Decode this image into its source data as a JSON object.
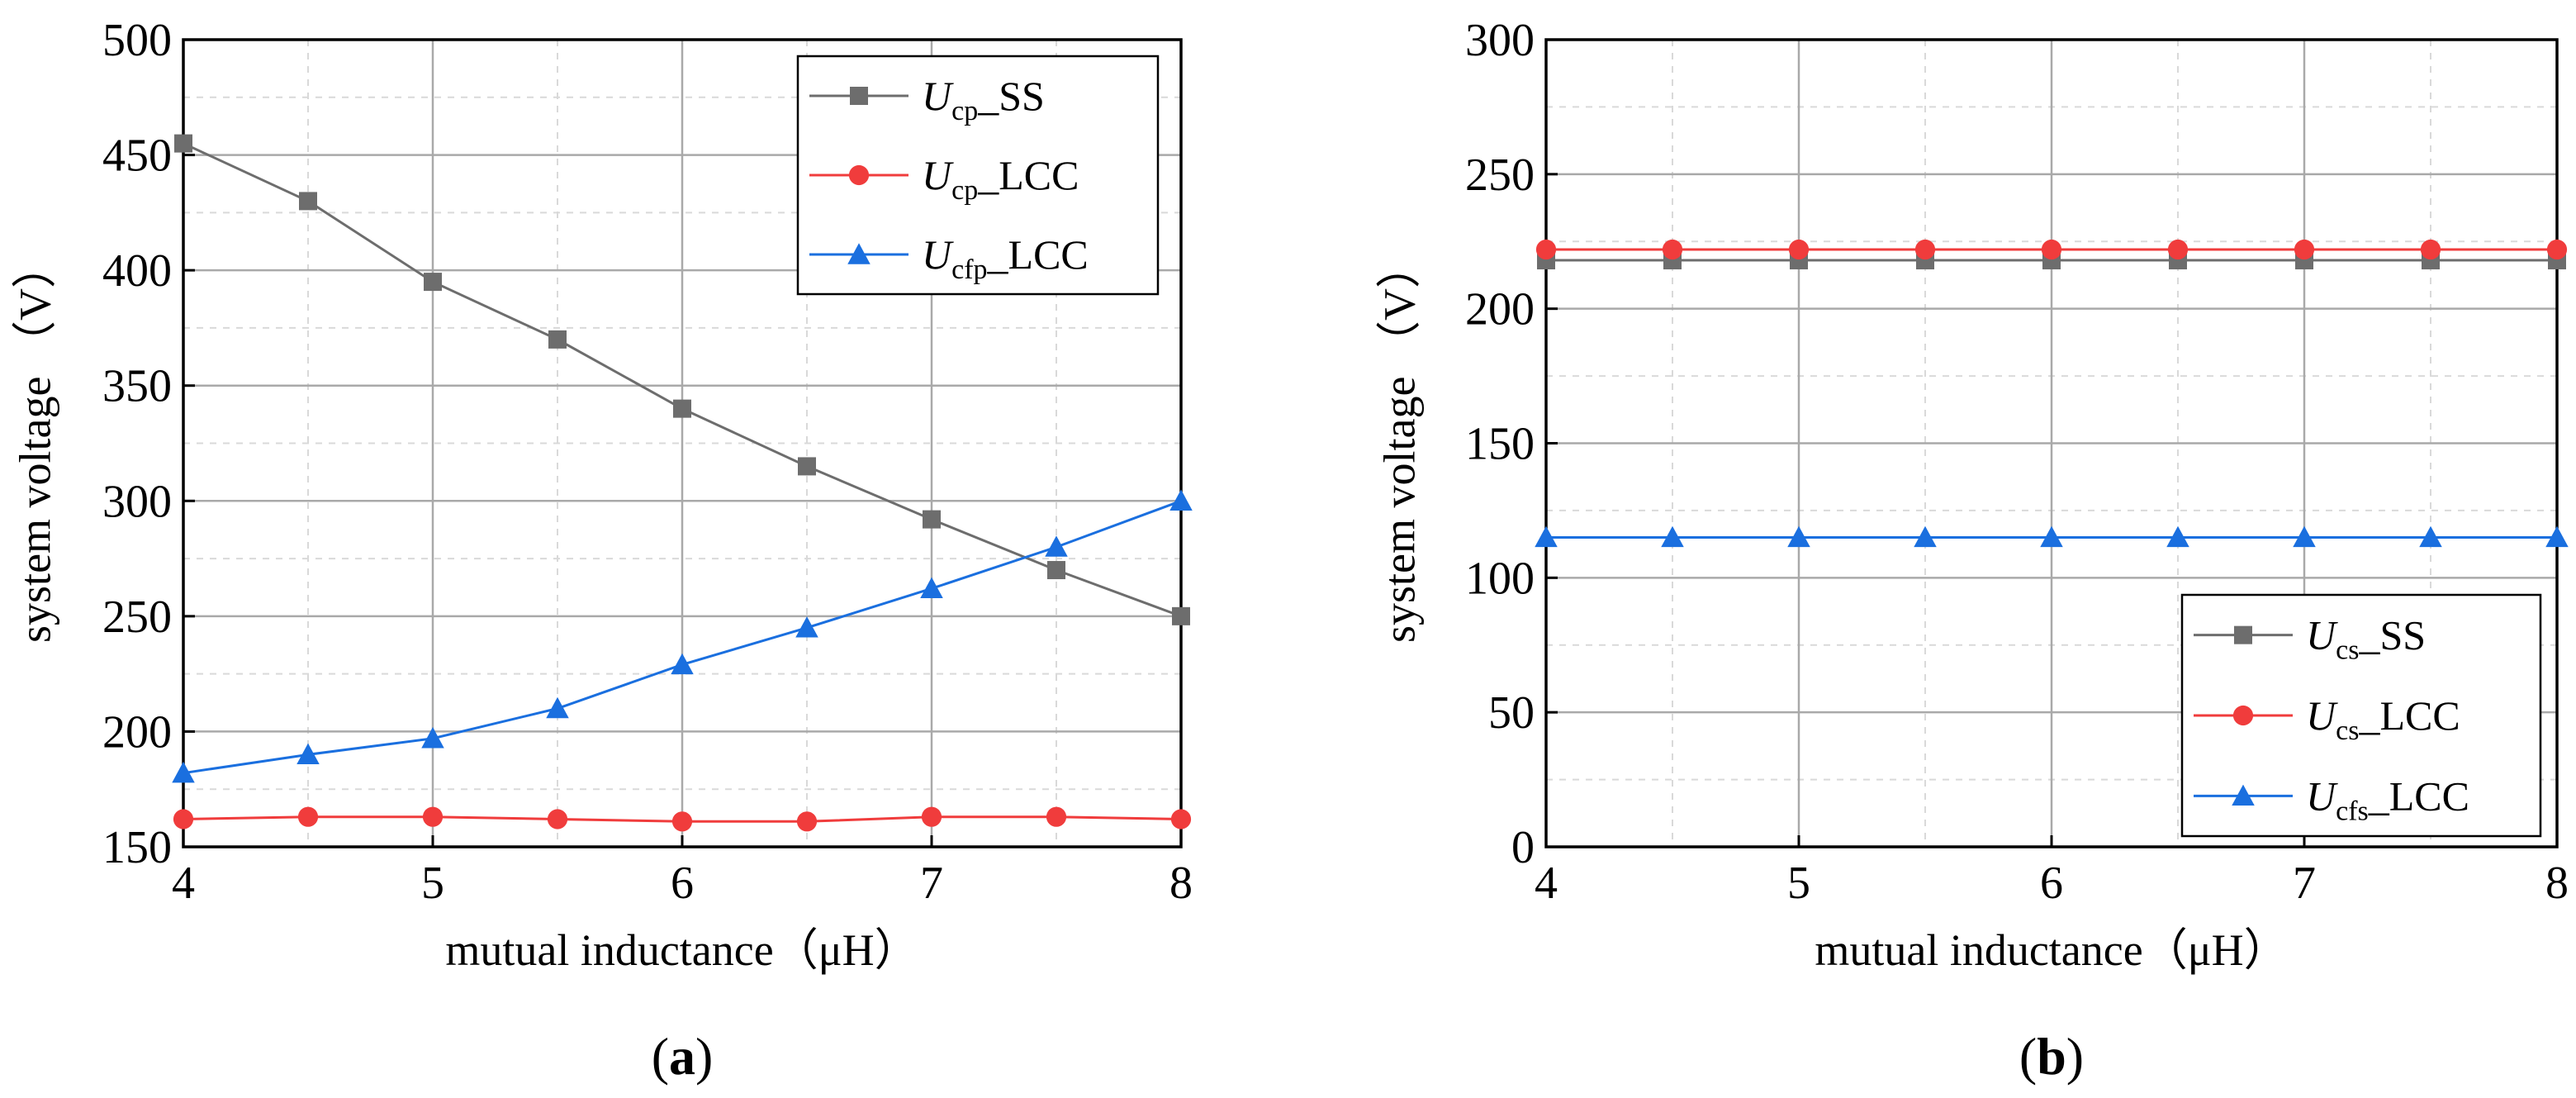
{
  "chart_data": [
    {
      "type": "line",
      "panel_label": "a",
      "xlabel": "mutual inductance（μH）",
      "ylabel": "system voltage （V）",
      "xlim": [
        4,
        8
      ],
      "ylim": [
        150,
        500
      ],
      "x_ticks": [
        4,
        5,
        6,
        7,
        8
      ],
      "y_ticks": [
        150,
        200,
        250,
        300,
        350,
        400,
        450,
        500
      ],
      "grid": true,
      "legend_position": "top-right",
      "x": [
        4,
        4.5,
        5,
        5.5,
        6,
        6.5,
        7,
        7.5,
        8
      ],
      "series": [
        {
          "name_main": "U",
          "name_sub": "cp",
          "name_suffix": "_SS",
          "color": "#6d6d6d",
          "marker": "square",
          "values": [
            455,
            430,
            395,
            370,
            340,
            315,
            292,
            270,
            250
          ]
        },
        {
          "name_main": "U",
          "name_sub": "cp",
          "name_suffix": "_LCC",
          "color": "#f03c3c",
          "marker": "circle",
          "values": [
            162,
            163,
            163,
            162,
            161,
            161,
            163,
            163,
            162
          ]
        },
        {
          "name_main": "U",
          "name_sub": "cfp",
          "name_suffix": "_LCC",
          "color": "#1a6fdf",
          "marker": "triangle",
          "values": [
            182,
            190,
            197,
            210,
            229,
            245,
            262,
            280,
            300
          ]
        }
      ]
    },
    {
      "type": "line",
      "panel_label": "b",
      "xlabel": "mutual inductance（μH）",
      "ylabel": "system voltage （V）",
      "xlim": [
        4,
        8
      ],
      "ylim": [
        0,
        300
      ],
      "x_ticks": [
        4,
        5,
        6,
        7,
        8
      ],
      "y_ticks": [
        0,
        50,
        100,
        150,
        200,
        250,
        300
      ],
      "grid": true,
      "legend_position": "bottom-right",
      "x": [
        4,
        4.5,
        5,
        5.5,
        6,
        6.5,
        7,
        7.5,
        8
      ],
      "series": [
        {
          "name_main": "U",
          "name_sub": "cs",
          "name_suffix": "_SS",
          "color": "#6d6d6d",
          "marker": "square",
          "values": [
            218,
            218,
            218,
            218,
            218,
            218,
            218,
            218,
            218
          ]
        },
        {
          "name_main": "U",
          "name_sub": "cs",
          "name_suffix": "_LCC",
          "color": "#f03c3c",
          "marker": "circle",
          "values": [
            222,
            222,
            222,
            222,
            222,
            222,
            222,
            222,
            222
          ]
        },
        {
          "name_main": "U",
          "name_sub": "cfs",
          "name_suffix": "_LCC",
          "color": "#1a6fdf",
          "marker": "triangle",
          "values": [
            115,
            115,
            115,
            115,
            115,
            115,
            115,
            115,
            115
          ]
        }
      ]
    }
  ]
}
